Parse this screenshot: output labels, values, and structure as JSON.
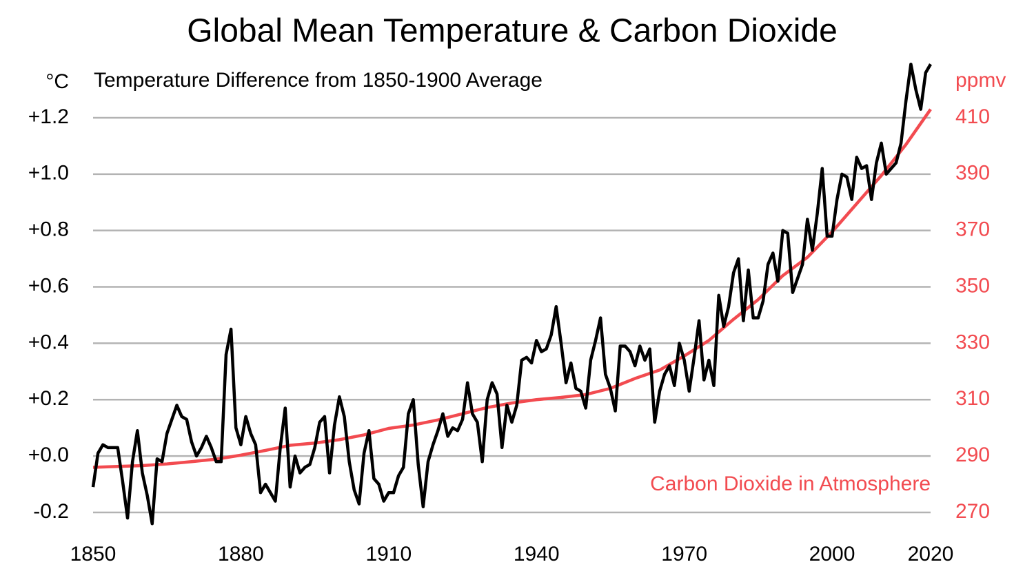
{
  "chart_data": {
    "type": "line",
    "title": "Global Mean Temperature & Carbon Dioxide",
    "subtitle": "Temperature Difference from 1850-1900 Average",
    "ylabel": "°C",
    "y2label": "ppmv",
    "annotation": "Carbon Dioxide in Atmosphere",
    "xlim": [
      1850,
      2020
    ],
    "xticks": [
      1850,
      1880,
      1910,
      1940,
      1970,
      2000,
      2020
    ],
    "ylim": [
      -0.28,
      1.4
    ],
    "yticks": [
      -0.2,
      {
        "value": 0.0,
        "label": "+0.0"
      },
      {
        "value": 0.2,
        "label": "+0.2"
      },
      {
        "value": 0.4,
        "label": "+0.4"
      },
      {
        "value": 0.6,
        "label": "+0.6"
      },
      {
        "value": 0.8,
        "label": "+0.8"
      },
      {
        "value": 1.0,
        "label": "+1.0"
      },
      {
        "value": 1.2,
        "label": "+1.2"
      }
    ],
    "y2lim": [
      262,
      430
    ],
    "y2ticks": [
      270,
      290,
      310,
      330,
      350,
      370,
      390,
      410
    ],
    "grid": true,
    "series": [
      {
        "name": "Temperature",
        "color": "#000000",
        "x": [
          1850,
          1851,
          1852,
          1853,
          1854,
          1855,
          1856,
          1857,
          1858,
          1859,
          1860,
          1861,
          1862,
          1863,
          1864,
          1865,
          1866,
          1867,
          1868,
          1869,
          1870,
          1871,
          1872,
          1873,
          1874,
          1875,
          1876,
          1877,
          1878,
          1879,
          1880,
          1881,
          1882,
          1883,
          1884,
          1885,
          1886,
          1887,
          1888,
          1889,
          1890,
          1891,
          1892,
          1893,
          1894,
          1895,
          1896,
          1897,
          1898,
          1899,
          1900,
          1901,
          1902,
          1903,
          1904,
          1905,
          1906,
          1907,
          1908,
          1909,
          1910,
          1911,
          1912,
          1913,
          1914,
          1915,
          1916,
          1917,
          1918,
          1919,
          1920,
          1921,
          1922,
          1923,
          1924,
          1925,
          1926,
          1927,
          1928,
          1929,
          1930,
          1931,
          1932,
          1933,
          1934,
          1935,
          1936,
          1937,
          1938,
          1939,
          1940,
          1941,
          1942,
          1943,
          1944,
          1945,
          1946,
          1947,
          1948,
          1949,
          1950,
          1951,
          1952,
          1953,
          1954,
          1955,
          1956,
          1957,
          1958,
          1959,
          1960,
          1961,
          1962,
          1963,
          1964,
          1965,
          1966,
          1967,
          1968,
          1969,
          1970,
          1971,
          1972,
          1973,
          1974,
          1975,
          1976,
          1977,
          1978,
          1979,
          1980,
          1981,
          1982,
          1983,
          1984,
          1985,
          1986,
          1987,
          1988,
          1989,
          1990,
          1991,
          1992,
          1993,
          1994,
          1995,
          1996,
          1997,
          1998,
          1999,
          2000,
          2001,
          2002,
          2003,
          2004,
          2005,
          2006,
          2007,
          2008,
          2009,
          2010,
          2011,
          2012,
          2013,
          2014,
          2015,
          2016,
          2017,
          2018,
          2019,
          2020
        ],
        "values": [
          -0.11,
          0.01,
          0.04,
          0.03,
          0.03,
          0.03,
          -0.09,
          -0.22,
          -0.02,
          0.09,
          -0.06,
          -0.14,
          -0.24,
          -0.01,
          -0.02,
          0.08,
          0.13,
          0.18,
          0.14,
          0.13,
          0.05,
          0.0,
          0.03,
          0.07,
          0.03,
          -0.02,
          -0.02,
          0.36,
          0.45,
          0.1,
          0.04,
          0.14,
          0.08,
          0.04,
          -0.13,
          -0.1,
          -0.13,
          -0.16,
          0.03,
          0.17,
          -0.11,
          0.0,
          -0.06,
          -0.04,
          -0.03,
          0.03,
          0.12,
          0.14,
          -0.06,
          0.11,
          0.21,
          0.14,
          -0.02,
          -0.12,
          -0.17,
          0.01,
          0.09,
          -0.08,
          -0.1,
          -0.16,
          -0.13,
          -0.13,
          -0.07,
          -0.04,
          0.15,
          0.2,
          -0.03,
          -0.18,
          -0.02,
          0.04,
          0.09,
          0.15,
          0.07,
          0.1,
          0.09,
          0.13,
          0.26,
          0.15,
          0.12,
          -0.02,
          0.2,
          0.26,
          0.22,
          0.03,
          0.18,
          0.12,
          0.18,
          0.34,
          0.35,
          0.33,
          0.41,
          0.37,
          0.38,
          0.43,
          0.53,
          0.4,
          0.26,
          0.33,
          0.24,
          0.23,
          0.17,
          0.34,
          0.41,
          0.49,
          0.29,
          0.24,
          0.16,
          0.39,
          0.39,
          0.37,
          0.32,
          0.39,
          0.34,
          0.38,
          0.12,
          0.23,
          0.29,
          0.32,
          0.25,
          0.4,
          0.34,
          0.23,
          0.35,
          0.48,
          0.27,
          0.34,
          0.25,
          0.57,
          0.46,
          0.53,
          0.65,
          0.7,
          0.48,
          0.66,
          0.49,
          0.49,
          0.55,
          0.68,
          0.72,
          0.62,
          0.8,
          0.79,
          0.58,
          0.63,
          0.68,
          0.84,
          0.73,
          0.86,
          1.02,
          0.78,
          0.78,
          0.91,
          1.0,
          0.99,
          0.91,
          1.06,
          1.02,
          1.03,
          0.91,
          1.04,
          1.11,
          1.0,
          1.02,
          1.04,
          1.11,
          1.26,
          1.39,
          1.3,
          1.23,
          1.36,
          1.39
        ]
      },
      {
        "name": "Carbon Dioxide",
        "color": "#f24b50",
        "axis": "y2",
        "x": [
          1850,
          1855,
          1860,
          1865,
          1870,
          1875,
          1880,
          1885,
          1890,
          1895,
          1900,
          1905,
          1910,
          1915,
          1920,
          1925,
          1930,
          1935,
          1940,
          1945,
          1950,
          1955,
          1960,
          1965,
          1970,
          1975,
          1980,
          1985,
          1990,
          1995,
          2000,
          2005,
          2010,
          2015,
          2020
        ],
        "values": [
          286.0,
          286.3,
          286.6,
          287.2,
          288.0,
          288.9,
          290.3,
          292.0,
          293.8,
          294.6,
          295.8,
          297.5,
          299.8,
          301.0,
          302.8,
          305.0,
          307.2,
          308.8,
          310.0,
          310.8,
          311.8,
          314.0,
          317.5,
          320.5,
          325.5,
          331.0,
          338.5,
          345.5,
          354.0,
          360.5,
          369.5,
          379.5,
          389.5,
          400.5,
          413.0
        ]
      }
    ]
  }
}
